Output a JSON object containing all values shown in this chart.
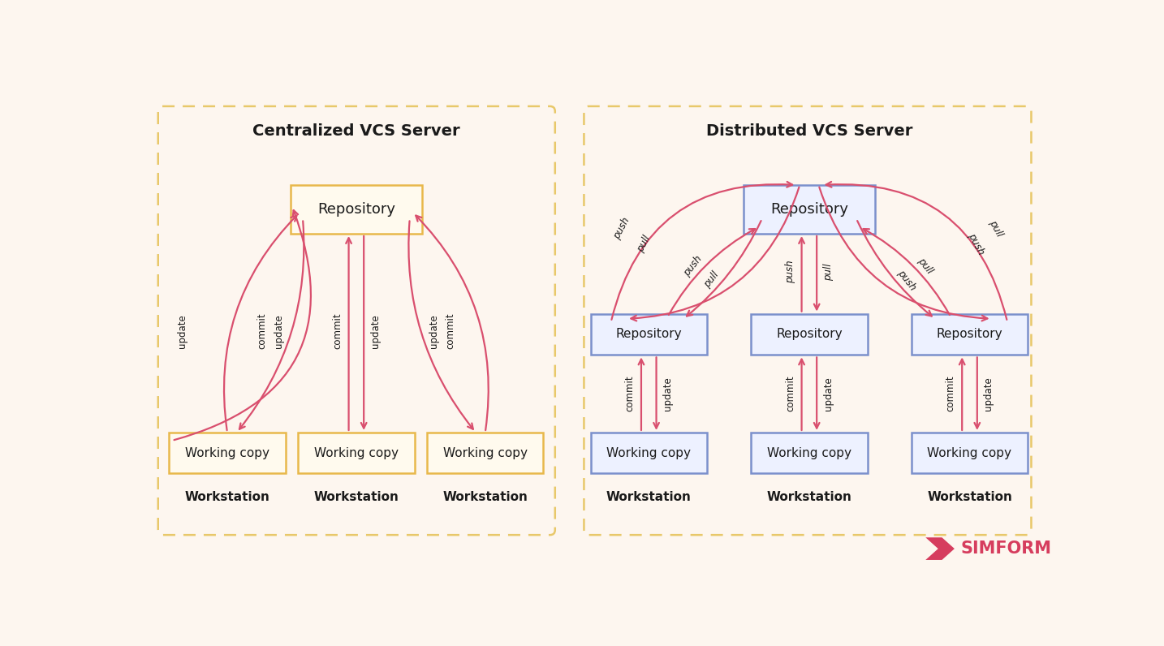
{
  "bg_color": "#fdf6ef",
  "title_color": "#1a1a1a",
  "arrow_color": "#d94f6e",
  "left_box_face": "#fffaee",
  "left_box_edge": "#e8b84b",
  "right_box_face": "#edf1ff",
  "right_box_edge": "#7b90cc",
  "panel_edge_color": "#e8c86a",
  "simform_color": "#d63d5e",
  "left_title": "Centralized VCS Server",
  "right_title": "Distributed VCS Server",
  "simform_text": "SIMFORM"
}
